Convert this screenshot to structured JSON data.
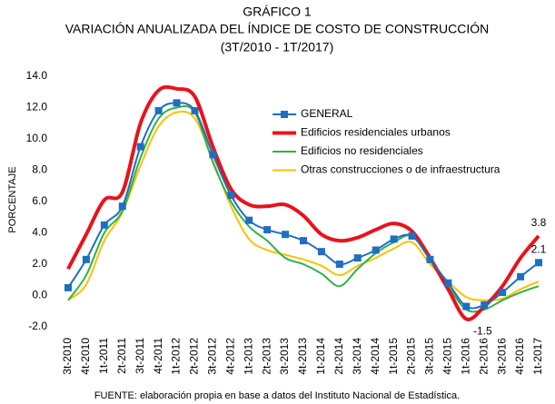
{
  "chart_data": {
    "type": "line",
    "title": "GRÁFICO 1",
    "subtitle": "VARIACIÓN ANUALIZADA DEL ÍNDICE DE COSTO DE CONSTRUCCIÓN",
    "period": "(3T/2010 - 1T/2017)",
    "y_label": "PORCENTAJE",
    "source": "FUENTE: elaboración propia en base a datos del Instituto Nacional de Estadística.",
    "categories": [
      "3t-2010",
      "4t-2010",
      "1t-2011",
      "2t-2011",
      "3t-2011",
      "4t-2011",
      "1t-2012",
      "2t-2012",
      "3t-2012",
      "4t-2012",
      "1t-2013",
      "2t-2013",
      "3t-2013",
      "4t-2013",
      "1t-2014",
      "2t-2014",
      "3t-2014",
      "4t-2014",
      "1t-2015",
      "2t-2015",
      "3t-2015",
      "4t-2015",
      "1t-2016",
      "2t-2016",
      "3t-2016",
      "4t-2016",
      "1t-2017"
    ],
    "series": [
      {
        "name": "GENERAL",
        "color": "#1f6fc1",
        "marker": "square",
        "values": [
          0.5,
          2.3,
          4.5,
          5.7,
          9.5,
          11.8,
          12.3,
          11.8,
          9.0,
          6.4,
          4.8,
          4.2,
          3.9,
          3.5,
          2.8,
          2.0,
          2.4,
          2.9,
          3.6,
          3.8,
          2.3,
          0.8,
          -0.7,
          -0.6,
          0.2,
          1.2,
          2.1
        ],
        "value_labels": [
          null,
          null,
          null,
          null,
          null,
          null,
          null,
          null,
          null,
          null,
          null,
          null,
          null,
          null,
          null,
          null,
          null,
          null,
          null,
          null,
          null,
          null,
          null,
          null,
          null,
          null,
          "2.1"
        ]
      },
      {
        "name": "Edificios residenciales urbanos",
        "color": "#e8131b",
        "width": 4,
        "values": [
          1.7,
          3.9,
          6.1,
          6.6,
          11.0,
          13.1,
          13.2,
          12.7,
          9.5,
          6.8,
          5.8,
          5.7,
          5.8,
          5.1,
          3.9,
          3.5,
          3.7,
          4.2,
          4.6,
          4.1,
          2.4,
          0.4,
          -1.5,
          -0.7,
          0.6,
          2.4,
          3.8
        ],
        "value_labels": [
          null,
          null,
          null,
          null,
          null,
          null,
          null,
          null,
          null,
          null,
          null,
          null,
          null,
          null,
          null,
          null,
          null,
          null,
          null,
          null,
          null,
          null,
          "-1.5",
          null,
          null,
          null,
          "3.8"
        ]
      },
      {
        "name": "Edificios no residenciales",
        "color": "#2db34a",
        "width": 2,
        "values": [
          -0.3,
          1.3,
          4.0,
          5.4,
          8.8,
          11.3,
          12.0,
          11.7,
          8.5,
          6.0,
          4.4,
          3.5,
          2.4,
          2.0,
          1.4,
          0.6,
          1.7,
          2.7,
          3.4,
          3.8,
          2.3,
          0.6,
          -0.9,
          -0.9,
          -0.3,
          0.2,
          0.6
        ]
      },
      {
        "name": "Otras construcciones o de infraestructura",
        "color": "#ffc000",
        "width": 2,
        "values": [
          -0.3,
          0.7,
          3.5,
          5.3,
          8.3,
          10.8,
          11.7,
          11.3,
          8.6,
          5.7,
          3.6,
          2.9,
          2.6,
          2.3,
          1.9,
          1.3,
          1.9,
          2.4,
          3.0,
          3.4,
          2.0,
          0.9,
          -0.1,
          -0.3,
          -0.2,
          0.4,
          0.9
        ]
      }
    ],
    "ylim": [
      -2,
      14
    ],
    "yticks": [
      {
        "value": -2,
        "label": "-2.0"
      },
      {
        "value": 0,
        "label": "0.0"
      },
      {
        "value": 2,
        "label": "2.0"
      },
      {
        "value": 4,
        "label": "4.0"
      },
      {
        "value": 6,
        "label": "6.0"
      },
      {
        "value": 8,
        "label": "8.0"
      },
      {
        "value": 10,
        "label": "10.0"
      },
      {
        "value": 12,
        "label": "12.0"
      },
      {
        "value": 14,
        "label": "14.0"
      }
    ],
    "grid": false,
    "legend": "upper right"
  }
}
